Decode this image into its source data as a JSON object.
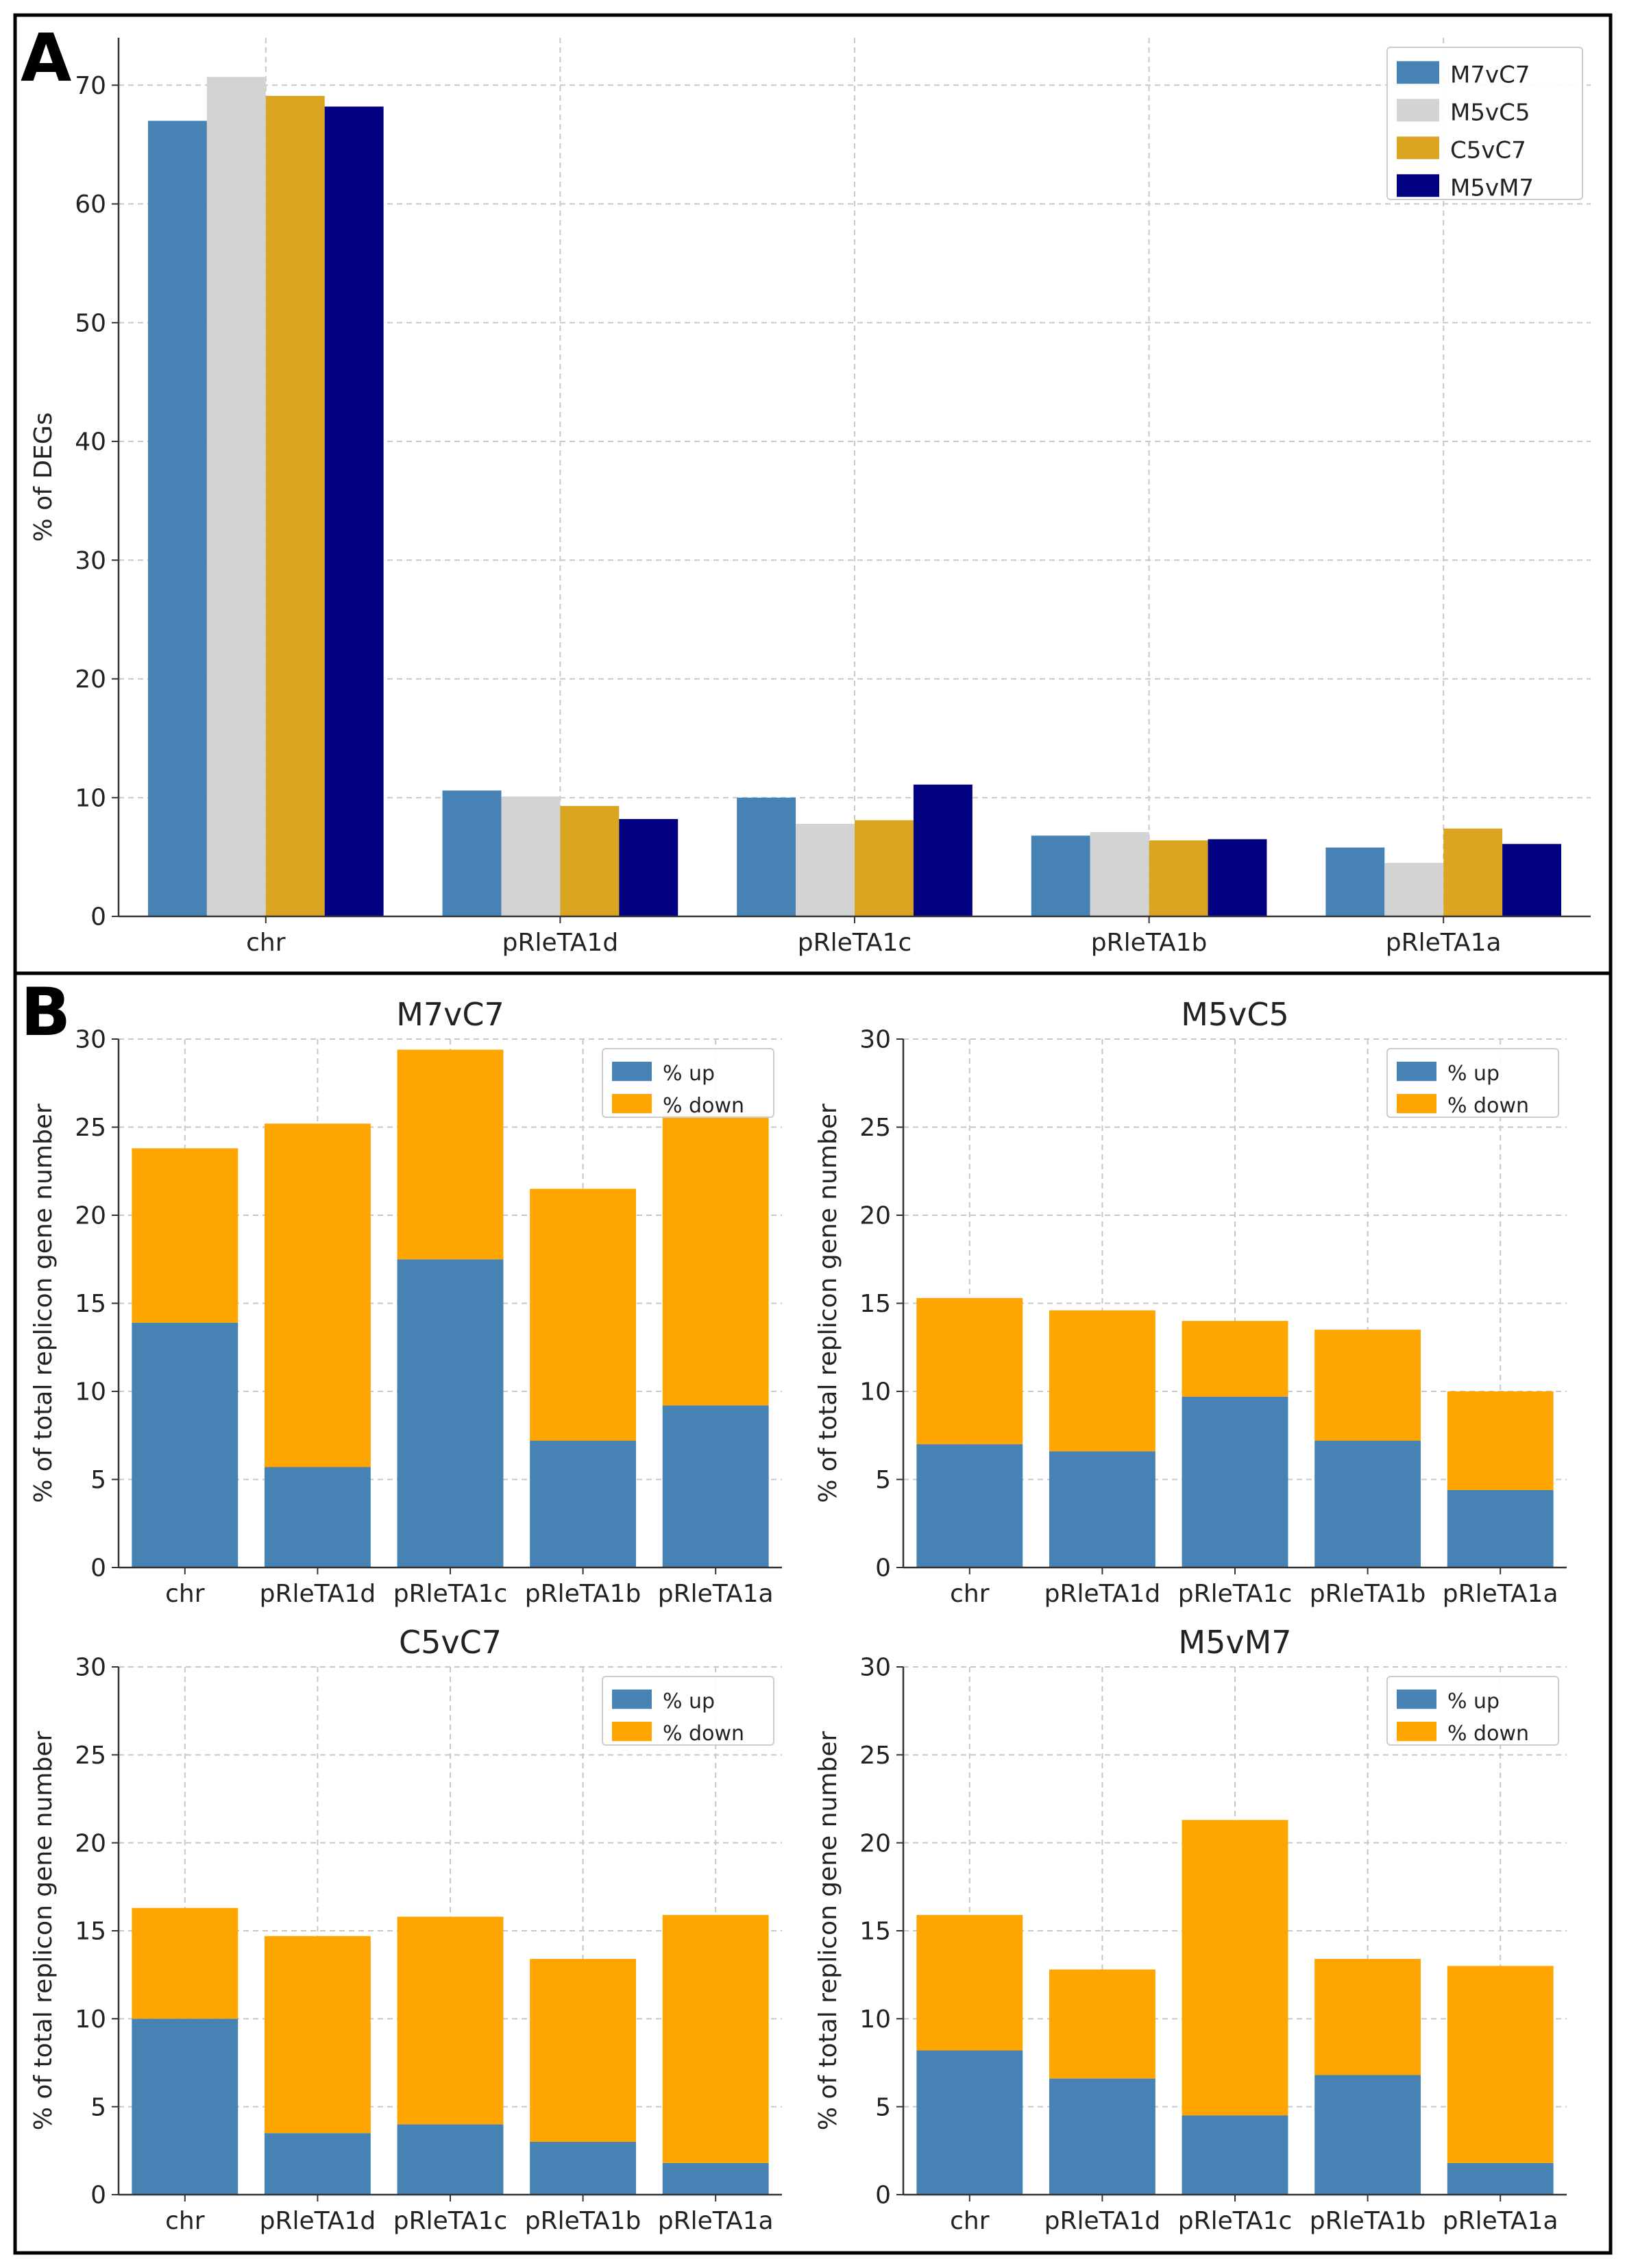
{
  "panel_labels": {
    "a": "A",
    "b": "B"
  },
  "colors": {
    "M7vC7": "#4682b4",
    "M5vC5": "#d3d3d3",
    "C5vC7": "#daa520",
    "M5vM7": "#000080",
    "up": "#4682b4",
    "down": "#ffa500"
  },
  "chart_data": [
    {
      "id": "panel-a",
      "type": "bar",
      "title": "",
      "xlabel": "",
      "ylabel": "% of DEGs",
      "ylim": [
        0,
        74
      ],
      "yticks": [
        0,
        10,
        20,
        30,
        40,
        50,
        60,
        70
      ],
      "legend_position": "top-right",
      "grid": true,
      "categories": [
        "chr",
        "pRleTA1d",
        "pRleTA1c",
        "pRleTA1b",
        "pRleTA1a"
      ],
      "series": [
        {
          "name": "M7vC7",
          "values": [
            67.0,
            10.6,
            10.0,
            6.8,
            5.8
          ]
        },
        {
          "name": "M5vC5",
          "values": [
            70.7,
            10.1,
            7.8,
            7.1,
            4.5
          ]
        },
        {
          "name": "C5vC7",
          "values": [
            69.1,
            9.3,
            8.1,
            6.4,
            7.4
          ]
        },
        {
          "name": "M5vM7",
          "values": [
            68.2,
            8.2,
            11.1,
            6.5,
            6.1
          ]
        }
      ]
    },
    {
      "id": "panel-b-m7vc7",
      "type": "bar",
      "stacked": true,
      "title": "M7vC7",
      "xlabel": "",
      "ylabel": "% of total replicon gene number",
      "ylim": [
        0,
        30
      ],
      "yticks": [
        0,
        5,
        10,
        15,
        20,
        25,
        30
      ],
      "legend_position": "top-right",
      "grid": true,
      "categories": [
        "chr",
        "pRleTA1d",
        "pRleTA1c",
        "pRleTA1b",
        "pRleTA1a"
      ],
      "series": [
        {
          "name": "% up",
          "values": [
            13.9,
            5.7,
            17.5,
            7.2,
            9.2
          ]
        },
        {
          "name": "% down",
          "values": [
            9.9,
            19.5,
            11.9,
            14.3,
            16.5
          ]
        }
      ]
    },
    {
      "id": "panel-b-m5vc5",
      "type": "bar",
      "stacked": true,
      "title": "M5vC5",
      "xlabel": "",
      "ylabel": "% of total replicon gene number",
      "ylim": [
        0,
        30
      ],
      "yticks": [
        0,
        5,
        10,
        15,
        20,
        25,
        30
      ],
      "legend_position": "top-right",
      "grid": true,
      "categories": [
        "chr",
        "pRleTA1d",
        "pRleTA1c",
        "pRleTA1b",
        "pRleTA1a"
      ],
      "series": [
        {
          "name": "% up",
          "values": [
            7.0,
            6.6,
            9.7,
            7.2,
            4.4
          ]
        },
        {
          "name": "% down",
          "values": [
            8.3,
            8.0,
            4.3,
            6.3,
            5.6
          ]
        }
      ]
    },
    {
      "id": "panel-b-c5vc7",
      "type": "bar",
      "stacked": true,
      "title": "C5vC7",
      "xlabel": "",
      "ylabel": "% of total replicon gene number",
      "ylim": [
        0,
        30
      ],
      "yticks": [
        0,
        5,
        10,
        15,
        20,
        25,
        30
      ],
      "legend_position": "top-right",
      "grid": true,
      "categories": [
        "chr",
        "pRleTA1d",
        "pRleTA1c",
        "pRleTA1b",
        "pRleTA1a"
      ],
      "series": [
        {
          "name": "% up",
          "values": [
            10.0,
            3.5,
            4.0,
            3.0,
            1.8
          ]
        },
        {
          "name": "% down",
          "values": [
            6.3,
            11.2,
            11.8,
            10.4,
            14.1
          ]
        }
      ]
    },
    {
      "id": "panel-b-m5vm7",
      "type": "bar",
      "stacked": true,
      "title": "M5vM7",
      "xlabel": "",
      "ylabel": "% of total replicon gene number",
      "ylim": [
        0,
        30
      ],
      "yticks": [
        0,
        5,
        10,
        15,
        20,
        25,
        30
      ],
      "legend_position": "top-right",
      "grid": true,
      "categories": [
        "chr",
        "pRleTA1d",
        "pRleTA1c",
        "pRleTA1b",
        "pRleTA1a"
      ],
      "series": [
        {
          "name": "% up",
          "values": [
            8.2,
            6.6,
            4.5,
            6.8,
            1.8
          ]
        },
        {
          "name": "% down",
          "values": [
            7.7,
            6.2,
            16.8,
            6.6,
            11.2
          ]
        }
      ]
    }
  ]
}
